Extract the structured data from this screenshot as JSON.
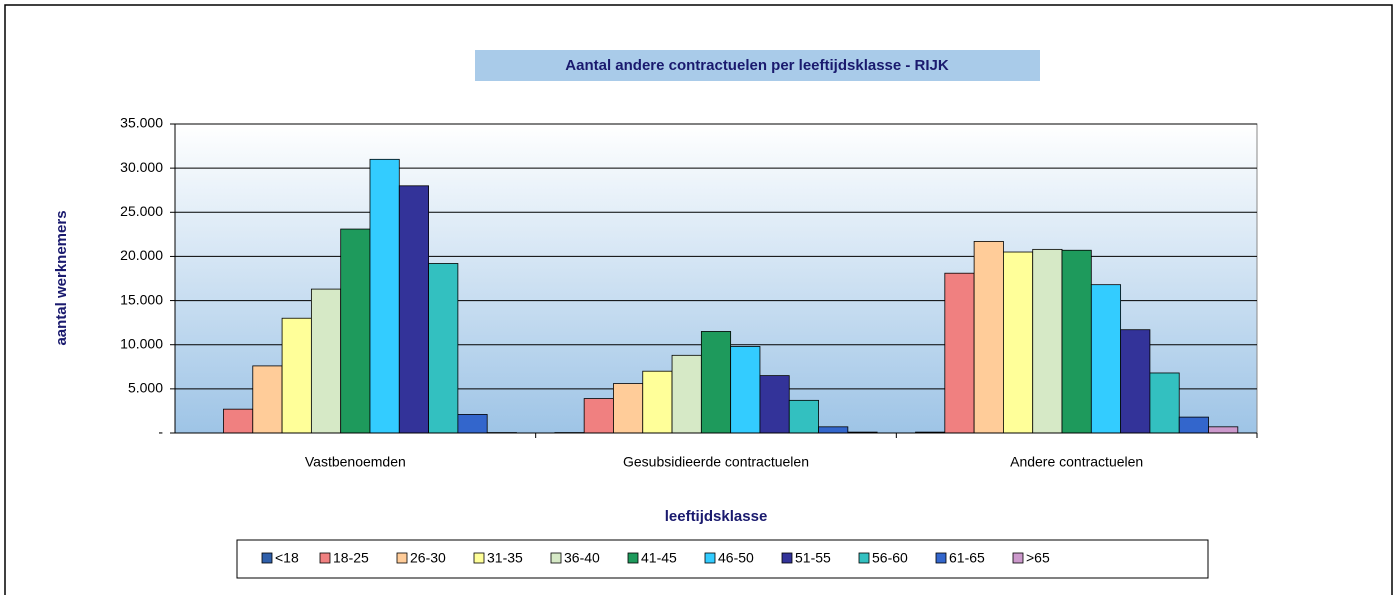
{
  "chart_data": {
    "type": "bar",
    "title": "Aantal andere contractuelen per leeftijdsklasse - RIJK",
    "y_label": "aantal werknemers",
    "x_label": "leeftijdsklasse",
    "categories": [
      "Vastbenoemden",
      "Gesubsidieerde contractuelen",
      "Andere contractuelen"
    ],
    "series": [
      {
        "name": "<18",
        "color": "#2f5faa",
        "values": [
          0,
          50,
          100
        ]
      },
      {
        "name": "18-25",
        "color": "#f08080",
        "values": [
          2700,
          3900,
          18100
        ]
      },
      {
        "name": "26-30",
        "color": "#ffcc99",
        "values": [
          7600,
          5600,
          21700
        ]
      },
      {
        "name": "31-35",
        "color": "#ffff99",
        "values": [
          13000,
          7000,
          20500
        ]
      },
      {
        "name": "36-40",
        "color": "#d6e9c6",
        "values": [
          16300,
          8800,
          20800
        ]
      },
      {
        "name": "41-45",
        "color": "#1e9a5c",
        "values": [
          23100,
          11500,
          20700
        ]
      },
      {
        "name": "46-50",
        "color": "#33ccff",
        "values": [
          31000,
          9800,
          16800
        ]
      },
      {
        "name": "51-55",
        "color": "#333399",
        "values": [
          28000,
          6500,
          11700
        ]
      },
      {
        "name": "56-60",
        "color": "#33c0c0",
        "values": [
          19200,
          3700,
          6800
        ]
      },
      {
        "name": "61-65",
        "color": "#3366cc",
        "values": [
          2100,
          700,
          1800
        ]
      },
      {
        "name": ">65",
        "color": "#cc99cc",
        "values": [
          50,
          100,
          700
        ]
      }
    ],
    "ylim": [
      0,
      35000
    ],
    "yticks": [
      {
        "value": 0,
        "label": "-"
      },
      {
        "value": 5000,
        "label": "5.000"
      },
      {
        "value": 10000,
        "label": "10.000"
      },
      {
        "value": 15000,
        "label": "15.000"
      },
      {
        "value": 20000,
        "label": "20.000"
      },
      {
        "value": 25000,
        "label": "25.000"
      },
      {
        "value": 30000,
        "label": "30.000"
      },
      {
        "value": 35000,
        "label": "35.000"
      }
    ],
    "grid": true,
    "legend": "bottom"
  }
}
